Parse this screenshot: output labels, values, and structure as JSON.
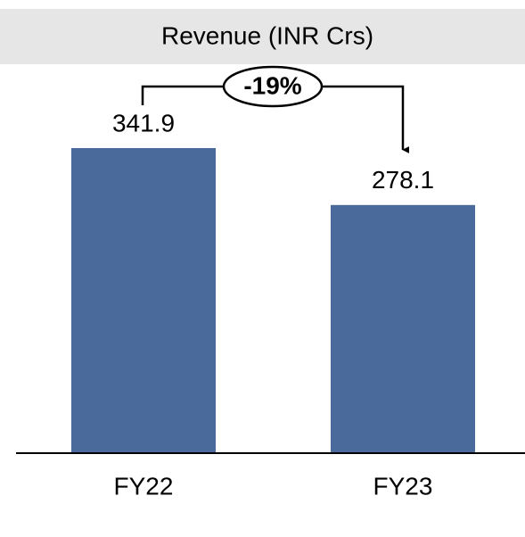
{
  "chart_data": {
    "type": "bar",
    "title": "Revenue (INR Crs)",
    "annotation": "-19%",
    "categories": [
      "FY22",
      "FY23"
    ],
    "values": [
      341.9,
      278.1
    ],
    "color": "#4a6a9c"
  }
}
